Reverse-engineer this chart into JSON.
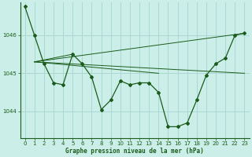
{
  "bg_color": "#cceee8",
  "grid_color": "#aad8d4",
  "line_color": "#1a5c1a",
  "text_color": "#1a5c1a",
  "xlabel": "Graphe pression niveau de la mer (hPa)",
  "xlim": [
    -0.5,
    23.5
  ],
  "ylim": [
    1043.3,
    1046.85
  ],
  "yticks": [
    1044,
    1045,
    1046
  ],
  "xticks": [
    0,
    1,
    2,
    3,
    4,
    5,
    6,
    7,
    8,
    9,
    10,
    11,
    12,
    13,
    14,
    15,
    16,
    17,
    18,
    19,
    20,
    21,
    22,
    23
  ],
  "main_series": [
    [
      0,
      1046.75
    ],
    [
      1,
      1046.0
    ],
    [
      2,
      1045.25
    ],
    [
      3,
      1044.75
    ],
    [
      4,
      1044.7
    ],
    [
      5,
      1045.5
    ],
    [
      6,
      1045.25
    ],
    [
      7,
      1044.9
    ],
    [
      8,
      1044.05
    ],
    [
      9,
      1044.3
    ],
    [
      10,
      1044.8
    ],
    [
      11,
      1044.7
    ],
    [
      12,
      1044.75
    ],
    [
      13,
      1044.75
    ],
    [
      14,
      1044.5
    ],
    [
      15,
      1043.6
    ],
    [
      16,
      1043.6
    ],
    [
      17,
      1043.7
    ],
    [
      18,
      1044.3
    ],
    [
      19,
      1044.95
    ],
    [
      20,
      1045.25
    ],
    [
      21,
      1045.4
    ],
    [
      22,
      1046.0
    ],
    [
      23,
      1046.05
    ]
  ],
  "fan_lines": [
    [
      [
        1,
        1045.3
      ],
      [
        23,
        1046.05
      ]
    ],
    [
      [
        1,
        1045.3
      ],
      [
        5,
        1045.5
      ]
    ],
    [
      [
        1,
        1045.3
      ],
      [
        14,
        1045.0
      ]
    ],
    [
      [
        1,
        1045.3
      ],
      [
        23,
        1045.0
      ]
    ]
  ]
}
